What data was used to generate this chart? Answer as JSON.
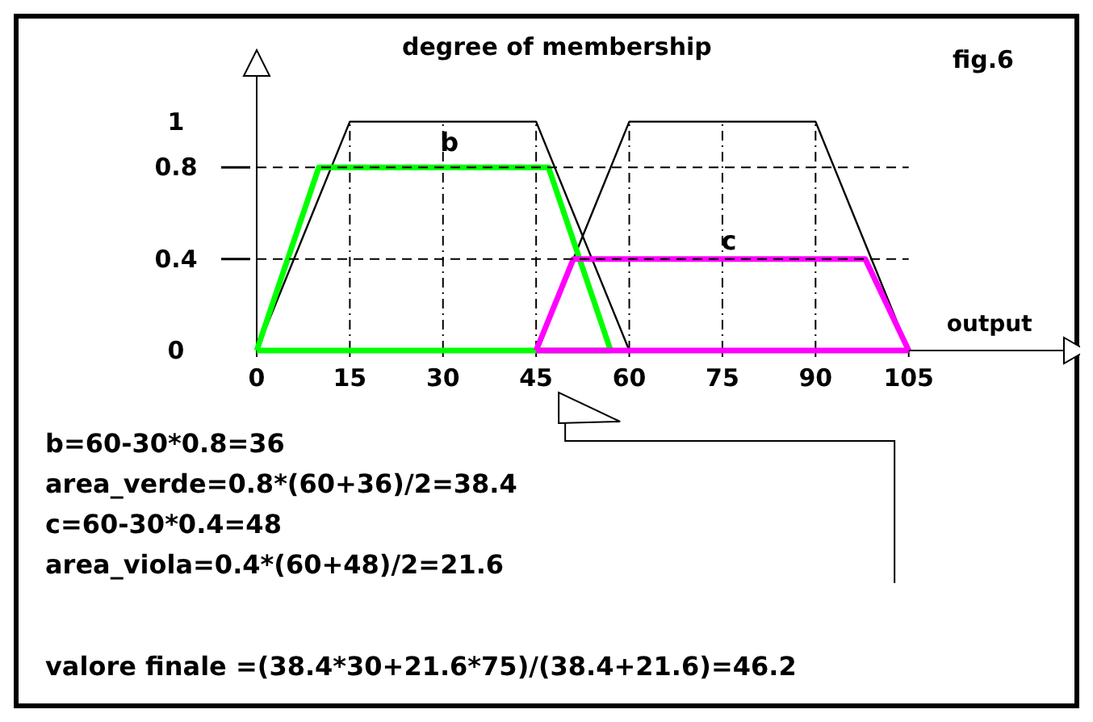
{
  "chart_data": {
    "type": "line",
    "ylabel": "degree of membership",
    "xlabel": "output",
    "xlim": [
      0,
      130
    ],
    "ylim": [
      0,
      1.2
    ],
    "xticks": [
      0,
      15,
      30,
      45,
      60,
      75,
      90,
      105
    ],
    "yticks": [
      0,
      0.4,
      0.8,
      1
    ],
    "grid": true,
    "marker": "none",
    "series": [
      {
        "color": "#000000",
        "x": [
          0,
          15,
          45,
          60
        ],
        "values": [
          0,
          1,
          1,
          0
        ]
      },
      {
        "color": "#000000",
        "x": [
          45,
          60,
          90,
          105
        ],
        "values": [
          0,
          1,
          1,
          0
        ]
      },
      {
        "color": "#00ff00",
        "x": [
          0,
          10,
          47,
          57
        ],
        "values": [
          0,
          0.8,
          0.8,
          0
        ]
      },
      {
        "color": "#00ff00",
        "x": [
          0,
          57
        ],
        "values": [
          0,
          0
        ]
      },
      {
        "color": "#ff00ff",
        "x": [
          45,
          51,
          98,
          105
        ],
        "values": [
          0,
          0.4,
          0.4,
          0
        ]
      },
      {
        "color": "#ff00ff",
        "x": [
          45,
          105
        ],
        "values": [
          0,
          0
        ]
      }
    ],
    "annotations": [
      "b",
      "c",
      "fig.6",
      "b=60-30*0.8=36",
      "area_verde=0.8*(60+36)/2=38.4",
      "c=60-30*0.4=48",
      "area_viola=0.4*(60+48)/2=21.6",
      "valore finale =(38.4*30+21.6*75)/(38.4+21.6)=46.2"
    ]
  }
}
